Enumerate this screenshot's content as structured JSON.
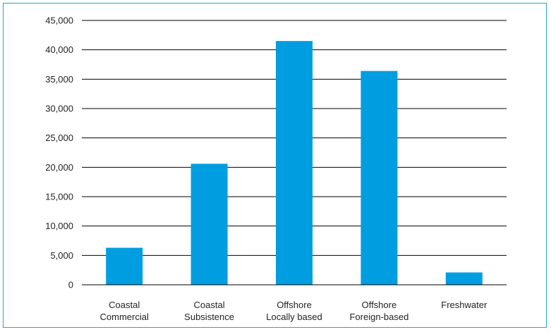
{
  "chart_data": {
    "type": "bar",
    "title": "",
    "xlabel": "",
    "ylabel": "",
    "categories": [
      [
        "Coastal",
        "Commercial"
      ],
      [
        "Coastal",
        "Subsistence"
      ],
      [
        "Offshore",
        "Locally based"
      ],
      [
        "Offshore",
        "Foreign-based"
      ],
      [
        "Freshwater"
      ]
    ],
    "values": [
      6300,
      20600,
      41500,
      36400,
      2100
    ],
    "ylim": [
      0,
      45000
    ],
    "yticks": [
      {
        "value": 0,
        "label": "0"
      },
      {
        "value": 5000,
        "label": "5,000"
      },
      {
        "value": 10000,
        "label": "10,000"
      },
      {
        "value": 15000,
        "label": "15,000"
      },
      {
        "value": 20000,
        "label": "20,000"
      },
      {
        "value": 25000,
        "label": "25,000"
      },
      {
        "value": 30000,
        "label": "30,000"
      },
      {
        "value": 35000,
        "label": "35,000"
      },
      {
        "value": 40000,
        "label": "40,000"
      },
      {
        "value": 45000,
        "label": "45,000"
      }
    ],
    "grid": true,
    "legend": "none",
    "bar_color": "#009ee0",
    "frame_color": "#2a9fd6"
  }
}
